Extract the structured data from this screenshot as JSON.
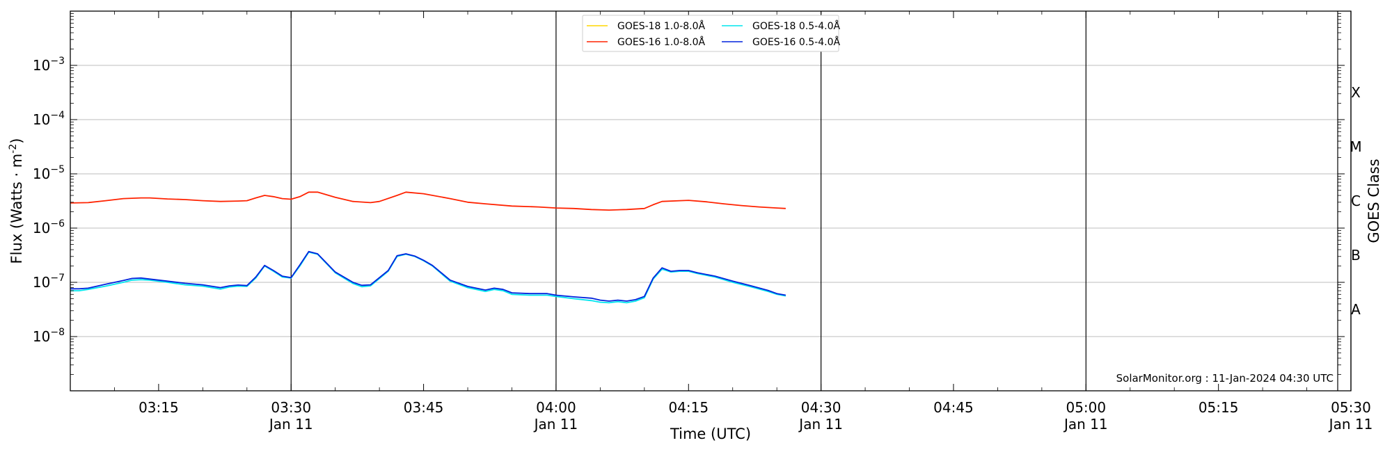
{
  "chart_data": {
    "type": "line",
    "y_scale": "log",
    "ylim": [
      1e-09,
      0.01
    ],
    "xlim": [
      "03:05",
      "05:30"
    ],
    "xlabel": "Time (UTC)",
    "ylabel": "Flux (Watts · m",
    "ylabel_sup": "-2",
    "ylabel_end": ")",
    "y2label": "GOES Class",
    "grid": true,
    "legend_position": "top-center",
    "x_ticks": [
      {
        "t": "03:15",
        "label": "03:15",
        "sub": ""
      },
      {
        "t": "03:30",
        "label": "03:30",
        "sub": "Jan 11"
      },
      {
        "t": "03:45",
        "label": "03:45",
        "sub": ""
      },
      {
        "t": "04:00",
        "label": "04:00",
        "sub": "Jan 11"
      },
      {
        "t": "04:15",
        "label": "04:15",
        "sub": ""
      },
      {
        "t": "04:30",
        "label": "04:30",
        "sub": "Jan 11"
      },
      {
        "t": "04:45",
        "label": "04:45",
        "sub": ""
      },
      {
        "t": "05:00",
        "label": "05:00",
        "sub": "Jan 11"
      },
      {
        "t": "05:15",
        "label": "05:15",
        "sub": ""
      },
      {
        "t": "05:30",
        "label": "05:30",
        "sub": "Jan 11"
      }
    ],
    "vlines": [
      "03:30",
      "04:00",
      "04:30",
      "05:00",
      "05:30"
    ],
    "y_ticks": [
      {
        "value": 1e-08,
        "base": "10",
        "exp": "−8"
      },
      {
        "value": 1e-07,
        "base": "10",
        "exp": "−7"
      },
      {
        "value": 1e-06,
        "base": "10",
        "exp": "−6"
      },
      {
        "value": 1e-05,
        "base": "10",
        "exp": "−5"
      },
      {
        "value": 0.0001,
        "base": "10",
        "exp": "−4"
      },
      {
        "value": 0.001,
        "base": "10",
        "exp": "−3"
      }
    ],
    "class_labels": [
      {
        "label": "A",
        "value": 3.16e-08
      },
      {
        "label": "B",
        "value": 3.16e-07
      },
      {
        "label": "C",
        "value": 3.16e-06
      },
      {
        "label": "M",
        "value": 3.16e-05
      },
      {
        "label": "X",
        "value": 0.000316
      }
    ],
    "watermark": "SolarMonitor.org : 11-Jan-2024 04:30 UTC",
    "series": [
      {
        "name": "GOES-18 1.0-8.0Å",
        "color": "#ffd700",
        "x": [],
        "y": []
      },
      {
        "name": "GOES-16 1.0-8.0Å",
        "color": "#ff2200",
        "x": [
          "03:05",
          "03:07",
          "03:09",
          "03:11",
          "03:13",
          "03:14",
          "03:16",
          "03:18",
          "03:20",
          "03:22",
          "03:24",
          "03:25",
          "03:26",
          "03:27",
          "03:28",
          "03:29",
          "03:30",
          "03:31",
          "03:32",
          "03:33",
          "03:35",
          "03:37",
          "03:39",
          "03:40",
          "03:42",
          "03:43",
          "03:45",
          "03:48",
          "03:50",
          "03:52",
          "03:55",
          "03:58",
          "04:00",
          "04:02",
          "04:04",
          "04:06",
          "04:08",
          "04:10",
          "04:11",
          "04:12",
          "04:14",
          "04:15",
          "04:17",
          "04:19",
          "04:21",
          "04:23",
          "04:25",
          "04:26"
        ],
        "y": [
          2.9e-06,
          2.95e-06,
          3.2e-06,
          3.5e-06,
          3.6e-06,
          3.6e-06,
          3.45e-06,
          3.35e-06,
          3.2e-06,
          3.1e-06,
          3.15e-06,
          3.2e-06,
          3.6e-06,
          4e-06,
          3.8e-06,
          3.5e-06,
          3.4e-06,
          3.8e-06,
          4.6e-06,
          4.6e-06,
          3.7e-06,
          3.1e-06,
          2.95e-06,
          3.1e-06,
          4e-06,
          4.6e-06,
          4.3e-06,
          3.5e-06,
          3e-06,
          2.8e-06,
          2.55e-06,
          2.45e-06,
          2.35e-06,
          2.3e-06,
          2.2e-06,
          2.15e-06,
          2.2e-06,
          2.3e-06,
          2.7e-06,
          3.1e-06,
          3.2e-06,
          3.25e-06,
          3.05e-06,
          2.8e-06,
          2.6e-06,
          2.45e-06,
          2.35e-06,
          2.3e-06
        ]
      },
      {
        "name": "GOES-18 0.5-4.0Å",
        "color": "#00e5ee",
        "x": [
          "03:05",
          "03:06",
          "03:07",
          "03:09",
          "03:11",
          "03:12",
          "03:13",
          "03:14",
          "03:16",
          "03:18",
          "03:20",
          "03:22",
          "03:23",
          "03:24",
          "03:25",
          "03:26",
          "03:27",
          "03:28",
          "03:29",
          "03:30",
          "03:31",
          "03:32",
          "03:33",
          "03:35",
          "03:37",
          "03:38",
          "03:39",
          "03:41",
          "03:42",
          "03:43",
          "03:44",
          "03:45",
          "03:46",
          "03:48",
          "03:50",
          "03:52",
          "03:53",
          "03:54",
          "03:55",
          "03:57",
          "03:59",
          "04:00",
          "04:02",
          "04:04",
          "04:05",
          "04:06",
          "04:07",
          "04:08",
          "04:09",
          "04:10",
          "04:11",
          "04:12",
          "04:13",
          "04:14",
          "04:15",
          "04:16",
          "04:18",
          "04:20",
          "04:22",
          "04:24",
          "04:25",
          "04:26"
        ],
        "y": [
          7e-08,
          7e-08,
          7.4e-08,
          8.5e-08,
          1e-07,
          1.1e-07,
          1.12e-07,
          1.1e-07,
          1e-07,
          9e-08,
          8.5e-08,
          7.5e-08,
          8.2e-08,
          8.5e-08,
          8.4e-08,
          1.2e-07,
          2e-07,
          1.6e-07,
          1.25e-07,
          1.2e-07,
          2e-07,
          3.6e-07,
          3.3e-07,
          1.5e-07,
          9.5e-08,
          8.3e-08,
          8.6e-08,
          1.6e-07,
          3e-07,
          3.3e-07,
          3e-07,
          2.5e-07,
          2e-07,
          1.05e-07,
          8e-08,
          6.8e-08,
          7.4e-08,
          7e-08,
          6e-08,
          5.8e-08,
          5.8e-08,
          5.5e-08,
          5e-08,
          4.6e-08,
          4.3e-08,
          4.2e-08,
          4.4e-08,
          4.2e-08,
          4.5e-08,
          5.2e-08,
          1.15e-07,
          1.75e-07,
          1.55e-07,
          1.6e-07,
          1.6e-07,
          1.45e-07,
          1.25e-07,
          1e-07,
          8.3e-08,
          6.8e-08,
          6e-08,
          5.6e-08
        ]
      },
      {
        "name": "GOES-16 0.5-4.0Å",
        "color": "#0022dd",
        "x": [
          "03:05",
          "03:06",
          "03:07",
          "03:09",
          "03:11",
          "03:12",
          "03:13",
          "03:14",
          "03:16",
          "03:18",
          "03:20",
          "03:22",
          "03:23",
          "03:24",
          "03:25",
          "03:26",
          "03:27",
          "03:28",
          "03:29",
          "03:30",
          "03:31",
          "03:32",
          "03:33",
          "03:35",
          "03:37",
          "03:38",
          "03:39",
          "03:41",
          "03:42",
          "03:43",
          "03:44",
          "03:45",
          "03:46",
          "03:48",
          "03:50",
          "03:52",
          "03:53",
          "03:54",
          "03:55",
          "03:57",
          "03:59",
          "04:00",
          "04:02",
          "04:04",
          "04:05",
          "04:06",
          "04:07",
          "04:08",
          "04:09",
          "04:10",
          "04:11",
          "04:12",
          "04:13",
          "04:14",
          "04:15",
          "04:16",
          "04:18",
          "04:20",
          "04:22",
          "04:24",
          "04:25",
          "04:26"
        ],
        "y": [
          7.6e-08,
          7.6e-08,
          7.8e-08,
          9.2e-08,
          1.08e-07,
          1.18e-07,
          1.2e-07,
          1.15e-07,
          1.05e-07,
          9.6e-08,
          9e-08,
          8e-08,
          8.6e-08,
          8.9e-08,
          8.7e-08,
          1.25e-07,
          2.05e-07,
          1.65e-07,
          1.3e-07,
          1.22e-07,
          2.1e-07,
          3.7e-07,
          3.35e-07,
          1.55e-07,
          1e-07,
          8.8e-08,
          9e-08,
          1.65e-07,
          3.1e-07,
          3.35e-07,
          3.05e-07,
          2.55e-07,
          2.05e-07,
          1.1e-07,
          8.4e-08,
          7.2e-08,
          7.8e-08,
          7.4e-08,
          6.4e-08,
          6.2e-08,
          6.2e-08,
          5.8e-08,
          5.4e-08,
          5.1e-08,
          4.7e-08,
          4.5e-08,
          4.7e-08,
          4.5e-08,
          4.8e-08,
          5.5e-08,
          1.2e-07,
          1.85e-07,
          1.6e-07,
          1.65e-07,
          1.65e-07,
          1.5e-07,
          1.3e-07,
          1.05e-07,
          8.7e-08,
          7.1e-08,
          6.2e-08,
          5.8e-08
        ]
      }
    ]
  }
}
